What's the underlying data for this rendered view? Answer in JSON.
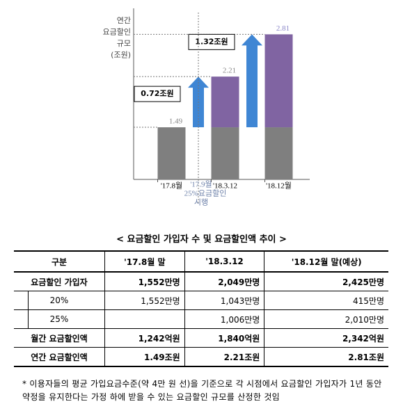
{
  "chart_data": {
    "type": "bar",
    "ylabel": [
      "연간",
      "요금할인",
      "규모",
      "(조원)"
    ],
    "categories": [
      "'17.8월",
      "'18.3.12",
      "'18.12월"
    ],
    "series": [
      {
        "color": "#7f7f7f",
        "values": [
          1.49,
          1.49,
          1.49
        ]
      },
      {
        "color": "#8064a2",
        "values": [
          null,
          0.72,
          1.32
        ],
        "value_labels": [
          null,
          "0.72조원",
          "1.32조원"
        ]
      }
    ],
    "totals": [
      1.49,
      2.21,
      2.81
    ],
    "arrow_color": "#3f86d4",
    "annotation": [
      "'17.9월",
      "25%요금할인",
      "시행"
    ],
    "ylim": [
      0.75,
      3.1
    ]
  },
  "table": {
    "title": "< 요금할인 가입자 수 및 요금할인액 추이 >",
    "header": [
      "구분",
      "'17.8월 말",
      "'18.3.12",
      "'18.12월 말(예상)"
    ],
    "rows": [
      [
        "요금할인 가입자",
        "1,552만명",
        "2,049만명",
        "2,425만명"
      ],
      [
        "20%",
        "1,552만명",
        "1,043만명",
        "415만명"
      ],
      [
        "25%",
        null,
        "1,006만명",
        "2,010만명"
      ],
      [
        "월간 요금할인액",
        "1,242억원",
        "1,840억원",
        "2,342억원"
      ],
      [
        "연간 요금할인액",
        "1.49조원",
        "2.21조원",
        "2.81조원"
      ]
    ]
  },
  "footnote": "* 이용자들의 평균 가입요금수준(약 4만 원 선)을 기준으로 각 시점에서 요금할인 가입자가 1년 동안 약정을 유지한다는 가정 하에 받을 수 있는 요금할인 규모를 산정한 것임"
}
